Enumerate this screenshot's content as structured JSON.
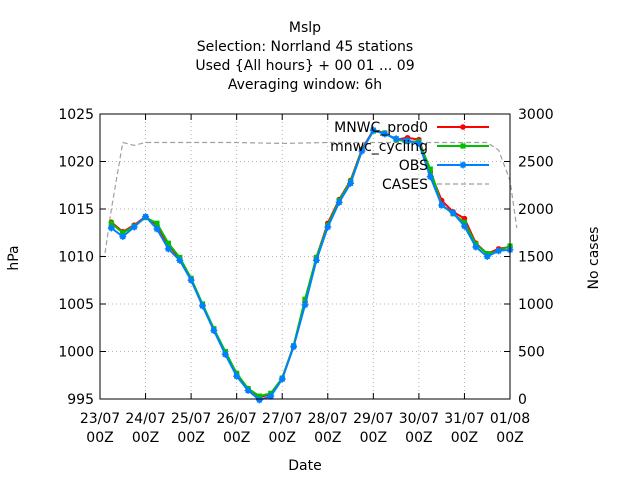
{
  "chart_data": {
    "type": "line",
    "title_lines": [
      "Mslp",
      "Selection: Norrland     45 stations",
      "Used {All hours} + 00 01 ... 09",
      "Averaging window:  6h"
    ],
    "xlabel": "Date",
    "ylabel": "hPa",
    "y2label": "No cases",
    "ylim": [
      995,
      1025
    ],
    "y2lim": [
      0,
      3000
    ],
    "yticks": [
      995,
      1000,
      1005,
      1010,
      1015,
      1020,
      1025
    ],
    "y2ticks": [
      0,
      500,
      1000,
      1500,
      2000,
      2500,
      3000
    ],
    "xticks": [
      {
        "line1": "23/07",
        "line2": "00Z"
      },
      {
        "line1": "24/07",
        "line2": "00Z"
      },
      {
        "line1": "25/07",
        "line2": "00Z"
      },
      {
        "line1": "26/07",
        "line2": "00Z"
      },
      {
        "line1": "27/07",
        "line2": "00Z"
      },
      {
        "line1": "28/07",
        "line2": "00Z"
      },
      {
        "line1": "29/07",
        "line2": "00Z"
      },
      {
        "line1": "30/07",
        "line2": "00Z"
      },
      {
        "line1": "31/07",
        "line2": "00Z"
      },
      {
        "line1": "01/08",
        "line2": "00Z"
      }
    ],
    "xlim_days": [
      0,
      9
    ],
    "x_days": [
      0.25,
      0.5,
      0.75,
      1.0,
      1.25,
      1.5,
      1.75,
      2.0,
      2.25,
      2.5,
      2.75,
      3.0,
      3.25,
      3.5,
      3.75,
      4.0,
      4.25,
      4.5,
      4.75,
      5.0,
      5.25,
      5.5,
      5.75,
      6.0,
      6.25,
      6.5,
      6.75,
      7.0,
      7.25,
      7.5,
      7.75,
      8.0,
      8.25,
      8.5,
      8.75,
      9.0
    ],
    "grid": true,
    "legend_position": "top-right",
    "series": [
      {
        "name": "MNWC_prod0",
        "axis": "left",
        "color": "#ff0000",
        "marker": "circle",
        "values": [
          1013.6,
          1012.6,
          1013.3,
          1014.2,
          1013.3,
          1011.2,
          1009.8,
          1007.6,
          1004.9,
          1002.3,
          999.9,
          997.6,
          996.1,
          995.2,
          995.5,
          997.2,
          1000.6,
          1005.2,
          1009.9,
          1013.5,
          1016.0,
          1018.0,
          1021.3,
          1023.3,
          1023.0,
          1022.3,
          1022.5,
          1022.3,
          1018.9,
          1015.9,
          1014.7,
          1014.0,
          1011.4,
          1010.3,
          1010.8,
          1011.0
        ]
      },
      {
        "name": "mnwc_cycling",
        "axis": "left",
        "color": "#00c000",
        "marker": "square",
        "values": [
          1013.5,
          1012.5,
          1013.2,
          1014.1,
          1013.5,
          1011.4,
          1009.9,
          1007.7,
          1005.0,
          1002.4,
          1000.0,
          997.7,
          996.1,
          995.3,
          995.6,
          997.2,
          1000.6,
          1005.5,
          1009.9,
          1013.3,
          1015.9,
          1017.9,
          1021.2,
          1023.2,
          1023.0,
          1022.3,
          1022.1,
          1022.1,
          1019.2,
          1015.4,
          1014.5,
          1013.6,
          1011.3,
          1010.3,
          1010.6,
          1011.1
        ]
      },
      {
        "name": "OBS",
        "axis": "left",
        "color": "#0080ff",
        "marker": "asterisk",
        "values": [
          1013.0,
          1012.1,
          1013.1,
          1014.2,
          1012.9,
          1010.8,
          1009.6,
          1007.5,
          1004.8,
          1002.2,
          999.7,
          997.4,
          995.9,
          994.9,
          995.3,
          997.1,
          1000.5,
          1004.9,
          1009.6,
          1013.1,
          1015.7,
          1017.7,
          1021.1,
          1023.3,
          1022.9,
          1022.4,
          1022.2,
          1021.9,
          1018.4,
          1015.4,
          1014.6,
          1013.2,
          1011.0,
          1010.0,
          1010.6,
          1010.7
        ]
      },
      {
        "name": "CASES",
        "axis": "right",
        "color": "#a0a0a0",
        "style": "dashed",
        "x_days": [
          0.0,
          0.1,
          0.25,
          0.5,
          0.75,
          1.0,
          2.0,
          3.0,
          4.0,
          5.0,
          6.0,
          7.0,
          8.0,
          8.5,
          8.75,
          9.0,
          9.15
        ],
        "values": [
          1500,
          1500,
          2000,
          2700,
          2670,
          2700,
          2700,
          2700,
          2690,
          2700,
          2700,
          2700,
          2700,
          2700,
          2620,
          2300,
          1800
        ]
      }
    ]
  }
}
